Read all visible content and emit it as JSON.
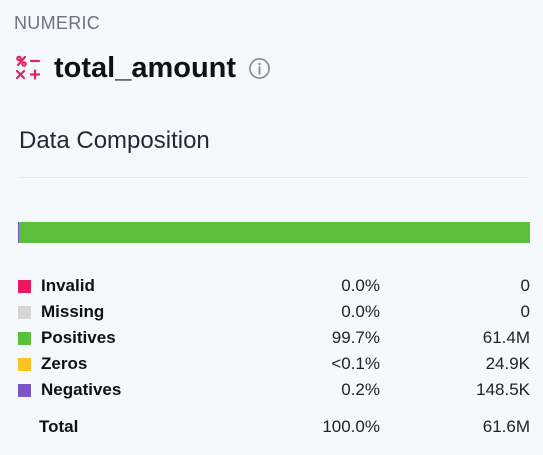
{
  "header": {
    "type_label": "NUMERIC",
    "column_name": "total_amount",
    "type_icon": "numeric-type-icon",
    "info_icon": "info-icon"
  },
  "section": {
    "title": "Data Composition"
  },
  "composition": {
    "rows": [
      {
        "label": "Invalid",
        "percent": "0.0%",
        "count": "0",
        "color": "#f0185c",
        "fraction": 0.0
      },
      {
        "label": "Missing",
        "percent": "0.0%",
        "count": "0",
        "color": "#d6d6d6",
        "fraction": 0.0
      },
      {
        "label": "Positives",
        "percent": "99.7%",
        "count": "61.4M",
        "color": "#5dc03c",
        "fraction": 0.997
      },
      {
        "label": "Zeros",
        "percent": "<0.1%",
        "count": "24.9K",
        "color": "#fbc424",
        "fraction": 0.0004
      },
      {
        "label": "Negatives",
        "percent": "0.2%",
        "count": "148.5K",
        "color": "#7b55c8",
        "fraction": 0.0024
      }
    ],
    "total": {
      "label": "Total",
      "percent": "100.0%",
      "count": "61.6M"
    }
  }
}
